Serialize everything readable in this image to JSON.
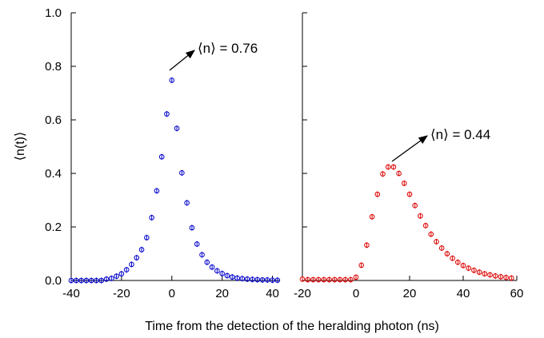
{
  "chart_data": [
    {
      "type": "scatter",
      "panel": "left",
      "xlabel": "Time from the detection of the heralding photon (ns)",
      "ylabel": "⟨n(t)⟩",
      "xlim": [
        -40,
        43
      ],
      "ylim": [
        0,
        1.0
      ],
      "x_ticks": [
        "-40",
        "-20",
        "0",
        "20",
        "40"
      ],
      "y_ticks": [
        "0.0",
        "0.2",
        "0.4",
        "0.6",
        "0.8",
        "1.0"
      ],
      "marker": "open circle with error bar",
      "color": "#0000cc",
      "annotation": "⟨n⟩ = 0.76",
      "points": [
        {
          "x": -40,
          "y": 0.0
        },
        {
          "x": -38,
          "y": 0.0
        },
        {
          "x": -36,
          "y": 0.0
        },
        {
          "x": -34,
          "y": 0.0
        },
        {
          "x": -32,
          "y": 0.0
        },
        {
          "x": -30,
          "y": 0.0
        },
        {
          "x": -28,
          "y": 0.0
        },
        {
          "x": -26,
          "y": 0.005
        },
        {
          "x": -24,
          "y": 0.008
        },
        {
          "x": -22,
          "y": 0.016
        },
        {
          "x": -20,
          "y": 0.025
        },
        {
          "x": -18,
          "y": 0.04
        },
        {
          "x": -16,
          "y": 0.06
        },
        {
          "x": -14,
          "y": 0.085
        },
        {
          "x": -12,
          "y": 0.115
        },
        {
          "x": -10,
          "y": 0.16
        },
        {
          "x": -8,
          "y": 0.235
        },
        {
          "x": -6,
          "y": 0.335
        },
        {
          "x": -4,
          "y": 0.462
        },
        {
          "x": -2,
          "y": 0.622
        },
        {
          "x": 0,
          "y": 0.748
        },
        {
          "x": 2,
          "y": 0.568
        },
        {
          "x": 4,
          "y": 0.402
        },
        {
          "x": 6,
          "y": 0.29
        },
        {
          "x": 8,
          "y": 0.197
        },
        {
          "x": 10,
          "y": 0.136
        },
        {
          "x": 12,
          "y": 0.096
        },
        {
          "x": 14,
          "y": 0.068
        },
        {
          "x": 16,
          "y": 0.05
        },
        {
          "x": 18,
          "y": 0.036
        },
        {
          "x": 20,
          "y": 0.026
        },
        {
          "x": 22,
          "y": 0.018
        },
        {
          "x": 24,
          "y": 0.013
        },
        {
          "x": 26,
          "y": 0.009
        },
        {
          "x": 28,
          "y": 0.007
        },
        {
          "x": 30,
          "y": 0.005
        },
        {
          "x": 32,
          "y": 0.004
        },
        {
          "x": 34,
          "y": 0.003
        },
        {
          "x": 36,
          "y": 0.002
        },
        {
          "x": 38,
          "y": 0.002
        },
        {
          "x": 40,
          "y": 0.001
        },
        {
          "x": 42,
          "y": 0.001
        }
      ]
    },
    {
      "type": "scatter",
      "panel": "right",
      "xlabel": "Time from the detection of the heralding photon (ns)",
      "ylabel": "",
      "xlim": [
        -20,
        60
      ],
      "ylim": [
        0,
        1.0
      ],
      "x_ticks": [
        "-20",
        "0",
        "20",
        "40",
        "60"
      ],
      "y_ticks": [],
      "marker": "open circle with error bar",
      "color": "#dd0000",
      "annotation": "⟨n⟩ = 0.44",
      "points": [
        {
          "x": -20,
          "y": 0.005
        },
        {
          "x": -18,
          "y": 0.003
        },
        {
          "x": -16,
          "y": 0.003
        },
        {
          "x": -14,
          "y": 0.003
        },
        {
          "x": -12,
          "y": 0.003
        },
        {
          "x": -10,
          "y": 0.003
        },
        {
          "x": -8,
          "y": 0.003
        },
        {
          "x": -6,
          "y": 0.003
        },
        {
          "x": -4,
          "y": 0.003
        },
        {
          "x": -2,
          "y": 0.003
        },
        {
          "x": 0,
          "y": 0.012
        },
        {
          "x": 2,
          "y": 0.057
        },
        {
          "x": 4,
          "y": 0.132
        },
        {
          "x": 6,
          "y": 0.238
        },
        {
          "x": 8,
          "y": 0.322
        },
        {
          "x": 10,
          "y": 0.398
        },
        {
          "x": 12,
          "y": 0.424
        },
        {
          "x": 14,
          "y": 0.424
        },
        {
          "x": 16,
          "y": 0.4
        },
        {
          "x": 18,
          "y": 0.363
        },
        {
          "x": 20,
          "y": 0.322
        },
        {
          "x": 22,
          "y": 0.28
        },
        {
          "x": 24,
          "y": 0.241
        },
        {
          "x": 26,
          "y": 0.205
        },
        {
          "x": 28,
          "y": 0.173
        },
        {
          "x": 30,
          "y": 0.145
        },
        {
          "x": 32,
          "y": 0.121
        },
        {
          "x": 34,
          "y": 0.1
        },
        {
          "x": 36,
          "y": 0.083
        },
        {
          "x": 38,
          "y": 0.068
        },
        {
          "x": 40,
          "y": 0.056
        },
        {
          "x": 42,
          "y": 0.046
        },
        {
          "x": 44,
          "y": 0.038
        },
        {
          "x": 46,
          "y": 0.031
        },
        {
          "x": 48,
          "y": 0.025
        },
        {
          "x": 50,
          "y": 0.021
        },
        {
          "x": 52,
          "y": 0.017
        },
        {
          "x": 54,
          "y": 0.014
        },
        {
          "x": 56,
          "y": 0.011
        },
        {
          "x": 58,
          "y": 0.009
        }
      ]
    }
  ]
}
